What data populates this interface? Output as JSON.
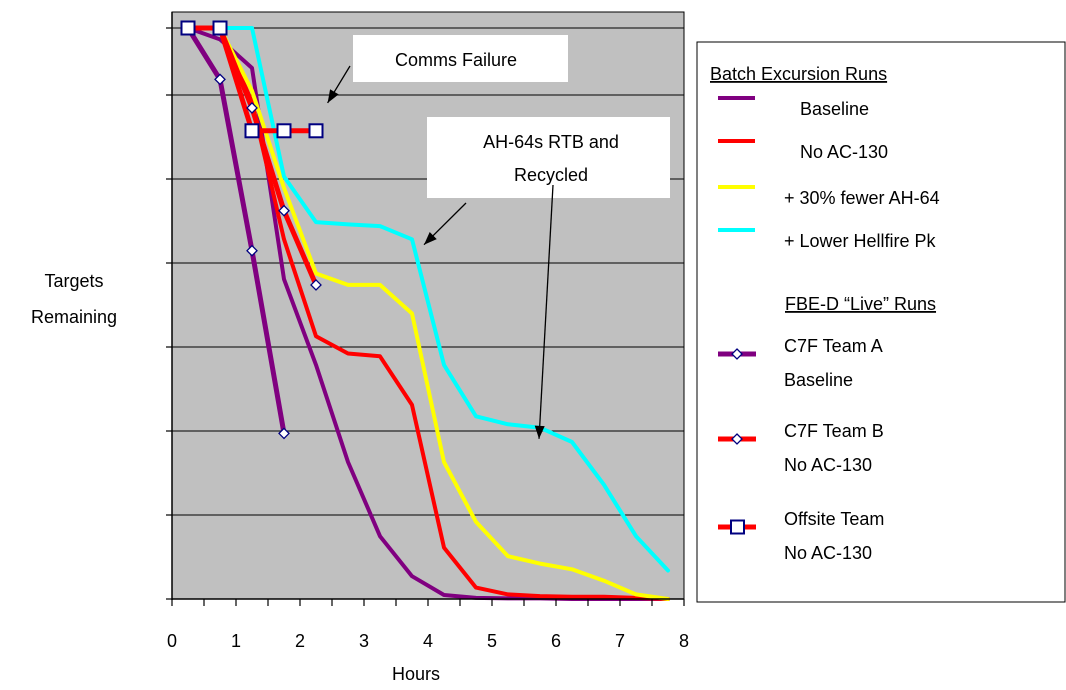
{
  "chart_data": {
    "type": "line",
    "title": "",
    "xlabel": "Hours",
    "ylabel": "Targets\nRemaining",
    "xlim": [
      0,
      8
    ],
    "ylim": [
      0,
      1
    ],
    "x_ticks": [
      "0",
      "1",
      "2",
      "3",
      "4",
      "5",
      "6",
      "7",
      "8"
    ],
    "y_tick_labels_shown": false,
    "grid": "horizontal",
    "plot_background": "#c0c0c0",
    "legend_position": "right",
    "legend": {
      "batch_heading": "Batch Excursion Runs",
      "live_heading": "FBE-D “Live” Runs",
      "batch_entries": [
        {
          "series": 0,
          "label": "Baseline"
        },
        {
          "series": 1,
          "label": "No AC-130"
        },
        {
          "series": 2,
          "label": "+ 30% fewer AH-64"
        },
        {
          "series": 3,
          "label": "+ Lower Hellfire Pk"
        }
      ],
      "live_entries": [
        {
          "series": 4,
          "line1": "C7F Team A",
          "line2": "Baseline"
        },
        {
          "series": 5,
          "line1": "C7F Team B",
          "line2": "No AC-130"
        },
        {
          "series": 6,
          "line1": "Offsite  Team",
          "line2": "No AC-130"
        }
      ]
    },
    "annotations": [
      {
        "id": "comms",
        "lines": [
          "Comms Failure"
        ],
        "target_x": 2.4,
        "target_y": 0.86
      },
      {
        "id": "rtb",
        "lines": [
          "AH-64s RTB and",
          "Recycled"
        ],
        "target_x": 4.0,
        "target_y": 0.61,
        "second_target_x": 5.75,
        "second_target_y": 0.27
      }
    ],
    "series": [
      {
        "color": "#800080",
        "marker": "none",
        "x": [
          0.25,
          0.75,
          1.25,
          1.75,
          2.25,
          2.75,
          3.25,
          3.75,
          4.25,
          4.75,
          5.25,
          5.75,
          6.25,
          6.75,
          7.25,
          7.75
        ],
        "y": [
          1.0,
          0.98,
          0.93,
          0.56,
          0.41,
          0.24,
          0.11,
          0.04,
          0.007,
          0.002,
          0.001,
          0.001,
          0.0,
          0.0,
          0.0,
          0.0
        ]
      },
      {
        "color": "#ff0000",
        "marker": "none",
        "x": [
          0.25,
          0.75,
          1.25,
          1.75,
          2.25,
          2.75,
          3.25,
          3.75,
          4.25,
          4.75,
          5.25,
          5.75,
          6.25,
          6.75,
          7.25,
          7.75
        ],
        "y": [
          1.0,
          1.0,
          0.87,
          0.63,
          0.46,
          0.43,
          0.425,
          0.34,
          0.09,
          0.02,
          0.008,
          0.005,
          0.004,
          0.004,
          0.002,
          0.0
        ]
      },
      {
        "color": "#ffff00",
        "marker": "none",
        "x": [
          0.25,
          0.75,
          1.25,
          1.75,
          2.25,
          2.75,
          3.25,
          3.75,
          4.25,
          4.75,
          5.25,
          5.75,
          6.25,
          6.75,
          7.25,
          7.75
        ],
        "y": [
          1.0,
          1.0,
          0.89,
          0.72,
          0.57,
          0.55,
          0.55,
          0.5,
          0.24,
          0.135,
          0.075,
          0.062,
          0.052,
          0.032,
          0.008,
          0.0
        ]
      },
      {
        "color": "#00ffff",
        "marker": "none",
        "x": [
          0.25,
          0.75,
          1.25,
          1.75,
          2.25,
          2.75,
          3.25,
          3.75,
          4.25,
          4.75,
          5.25,
          5.75,
          6.25,
          6.75,
          7.25,
          7.75
        ],
        "y": [
          1.0,
          1.0,
          1.0,
          0.74,
          0.66,
          0.656,
          0.653,
          0.63,
          0.41,
          0.32,
          0.306,
          0.3,
          0.275,
          0.2,
          0.11,
          0.05
        ]
      },
      {
        "color": "#800080",
        "marker": "diamond",
        "x": [
          0.25,
          0.75,
          1.25,
          1.75
        ],
        "y": [
          1.0,
          0.91,
          0.61,
          0.29
        ]
      },
      {
        "color": "#ff0000",
        "marker": "diamond",
        "x": [
          0.25,
          0.75,
          1.25,
          1.75,
          2.25
        ],
        "y": [
          1.0,
          1.0,
          0.86,
          0.68,
          0.55
        ]
      },
      {
        "color": "#ff0000",
        "marker": "square",
        "x": [
          0.25,
          0.75,
          1.25,
          1.75,
          2.25
        ],
        "y": [
          1.0,
          1.0,
          0.82,
          0.82,
          0.82
        ]
      }
    ]
  }
}
